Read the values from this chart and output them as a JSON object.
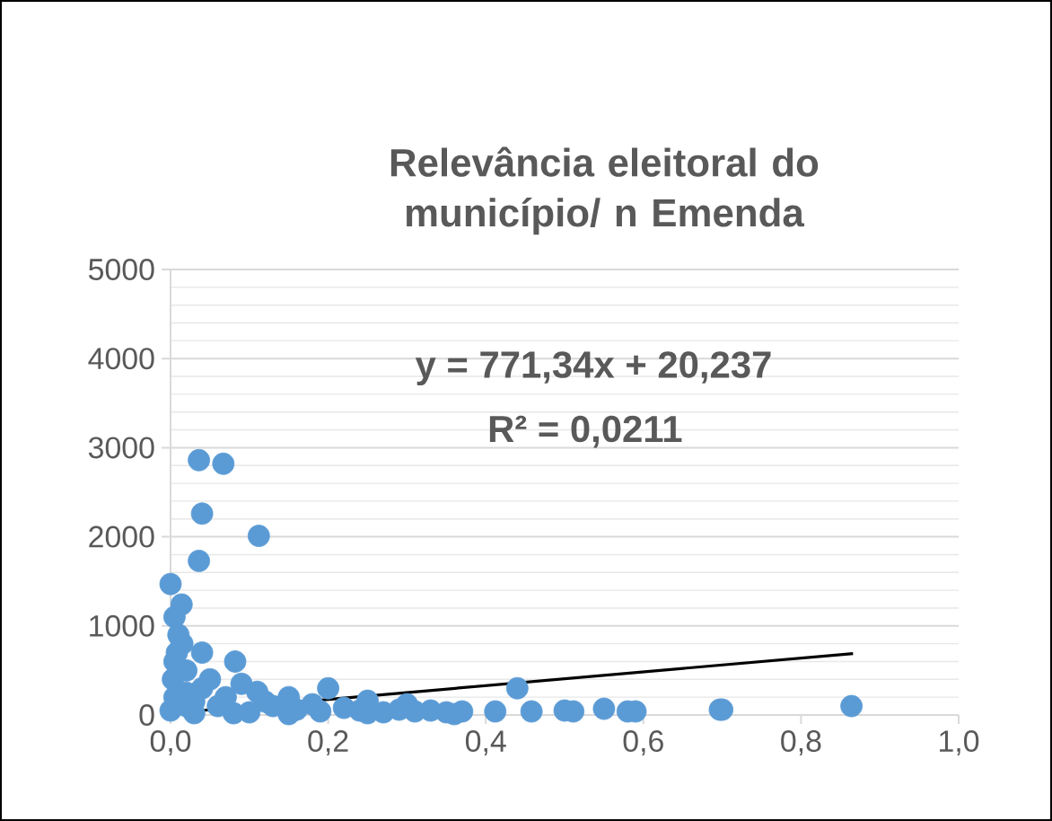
{
  "chart_data": {
    "type": "scatter",
    "title": "Relevância eleitoral do município/ n Emenda",
    "series": [
      {
        "type": "scatter",
        "color": "#5b9bd5",
        "marker": "circle",
        "x": [
          0.864,
          0.697,
          0.7,
          0.58,
          0.59,
          0.55,
          0.511,
          0.5,
          0.458,
          0.44,
          0.412,
          0.37,
          0.35,
          0.33,
          0.31,
          0.29,
          0.27,
          0.25,
          0.24,
          0.22,
          0.2,
          0.19,
          0.18,
          0.16,
          0.15,
          0.13,
          0.12,
          0.11,
          0.1,
          0.09,
          0.082,
          0.07,
          0.06,
          0.05,
          0.04,
          0.04,
          0.03,
          0.02,
          0.015,
          0.01,
          0.014,
          0.0,
          0.005,
          0.036,
          0.04,
          0.036,
          0.067,
          0.112,
          0.005,
          0.0,
          0.005,
          0.02,
          0.03,
          0.08,
          0.15,
          0.25,
          0.36,
          0.003,
          0.008,
          0.02,
          0.3
        ],
        "values": [
          100,
          60,
          60,
          40,
          40,
          70,
          40,
          50,
          40,
          300,
          40,
          40,
          30,
          50,
          40,
          60,
          30,
          160,
          50,
          80,
          300,
          40,
          120,
          60,
          200,
          100,
          150,
          260,
          30,
          350,
          600,
          200,
          100,
          400,
          700,
          300,
          150,
          500,
          800,
          900,
          1240,
          1470,
          1100,
          1730,
          2260,
          2860,
          2820,
          2010,
          600,
          50,
          200,
          100,
          20,
          20,
          10,
          20,
          10,
          400,
          700,
          250,
          120
        ]
      },
      {
        "type": "line",
        "color": "#000000",
        "marker": "none",
        "x": [
          0,
          0.866
        ],
        "values": [
          20,
          690
        ]
      }
    ],
    "grid": "y",
    "xlim": [
      0,
      1
    ],
    "xticks": [
      {
        "value": 0,
        "label": "0,0"
      },
      {
        "value": 0.2,
        "label": "0,2"
      },
      {
        "value": 0.4,
        "label": "0,4"
      },
      {
        "value": 0.6,
        "label": "0,6"
      },
      {
        "value": 0.8,
        "label": "0,8"
      },
      {
        "value": 1,
        "label": "1,0"
      }
    ],
    "ylim": [
      0,
      5000
    ],
    "yticks": [
      0,
      1000,
      2000,
      3000,
      4000,
      5000
    ],
    "annotations": [
      "y = 771,34x + 20,237",
      "R² = 0,0211"
    ]
  }
}
